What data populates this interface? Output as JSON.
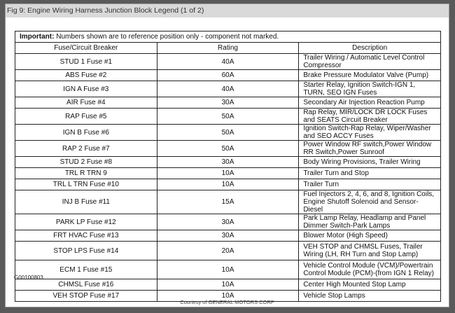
{
  "title": "Fig 9: Engine Wiring Harness Junction Block Legend (1 of 2)",
  "important_label": "Important:",
  "important_text": " Numbers shown are to reference position only - component not marked.",
  "columns": [
    "Fuse/Circuit Breaker",
    "Rating",
    "Description"
  ],
  "rows": [
    {
      "fuse": "STUD 1 Fuse #1",
      "rating": "40A",
      "description": "Trailer Wiring / Automatic Level Control Compressor"
    },
    {
      "fuse": "ABS Fuse #2",
      "rating": "60A",
      "description": "Brake Pressure Modulator Valve (Pump)"
    },
    {
      "fuse": "IGN A Fuse #3",
      "rating": "40A",
      "description": "Starter Relay, Ignition Switch-IGN 1, TURN, SEO IGN Fuses"
    },
    {
      "fuse": "AIR Fuse #4",
      "rating": "30A",
      "description": "Secondary Air Injection Reaction Pump"
    },
    {
      "fuse": "RAP Fuse #5",
      "rating": "50A",
      "description": "Rap Relay, MIR/LOCK DR LOCK Fuses and SEATS Circuit Breaker"
    },
    {
      "fuse": "IGN B Fuse #6",
      "rating": "50A",
      "description": "Ignition Switch-Rap Relay, Wiper/Washer and SEO ACCY Fuses"
    },
    {
      "fuse": "RAP 2 Fuse #7",
      "rating": "50A",
      "description": "Power Window RF switch,Power Window RR Switch,Power Sunroof"
    },
    {
      "fuse": "STUD 2 Fuse #8",
      "rating": "30A",
      "description": "Body Wiring Provisions, Trailer Wiring"
    },
    {
      "fuse": "TRL R TRN 9",
      "rating": "10A",
      "description": "Trailer Turn and Stop"
    },
    {
      "fuse": "TRL L TRN Fuse #10",
      "rating": "10A",
      "description": "Trailer Turn"
    },
    {
      "fuse": "INJ B Fuse #11",
      "rating": "15A",
      "description": "Fuel Injectors 2, 4, 6, and 8, Ignition Coils, Engine Shutoff Solenoid and Sensor-Diesel"
    },
    {
      "fuse": "PARK LP Fuse #12",
      "rating": "30A",
      "description": "Park Lamp Relay, Headlamp and Panel Dimmer Switch-Park Lamps"
    },
    {
      "fuse": "FRT HVAC Fuse #13",
      "rating": "30A",
      "description": "Blower Motor (High Speed)"
    },
    {
      "fuse": "STOP LPS Fuse #14",
      "rating": "20A",
      "description": "VEH STOP and CHMSL Fuses, Trailer Wiring (LH, RH Turn and Stop Lamp)"
    },
    {
      "fuse": "ECM 1 Fuse #15",
      "rating": "10A",
      "description": "Vehicle Control Module (VCM)/Powertrain Control Module (PCM)-(from IGN 1 Relay)"
    },
    {
      "fuse": "CHMSL Fuse #16",
      "rating": "10A",
      "description": "Center High Mounted Stop Lamp"
    },
    {
      "fuse": "VEH STOP Fuse #17",
      "rating": "10A",
      "description": "Vehicle Stop Lamps"
    }
  ],
  "figure_code": "G00100803",
  "courtesy": "Courtesy of GENERAL MOTORS CORP"
}
